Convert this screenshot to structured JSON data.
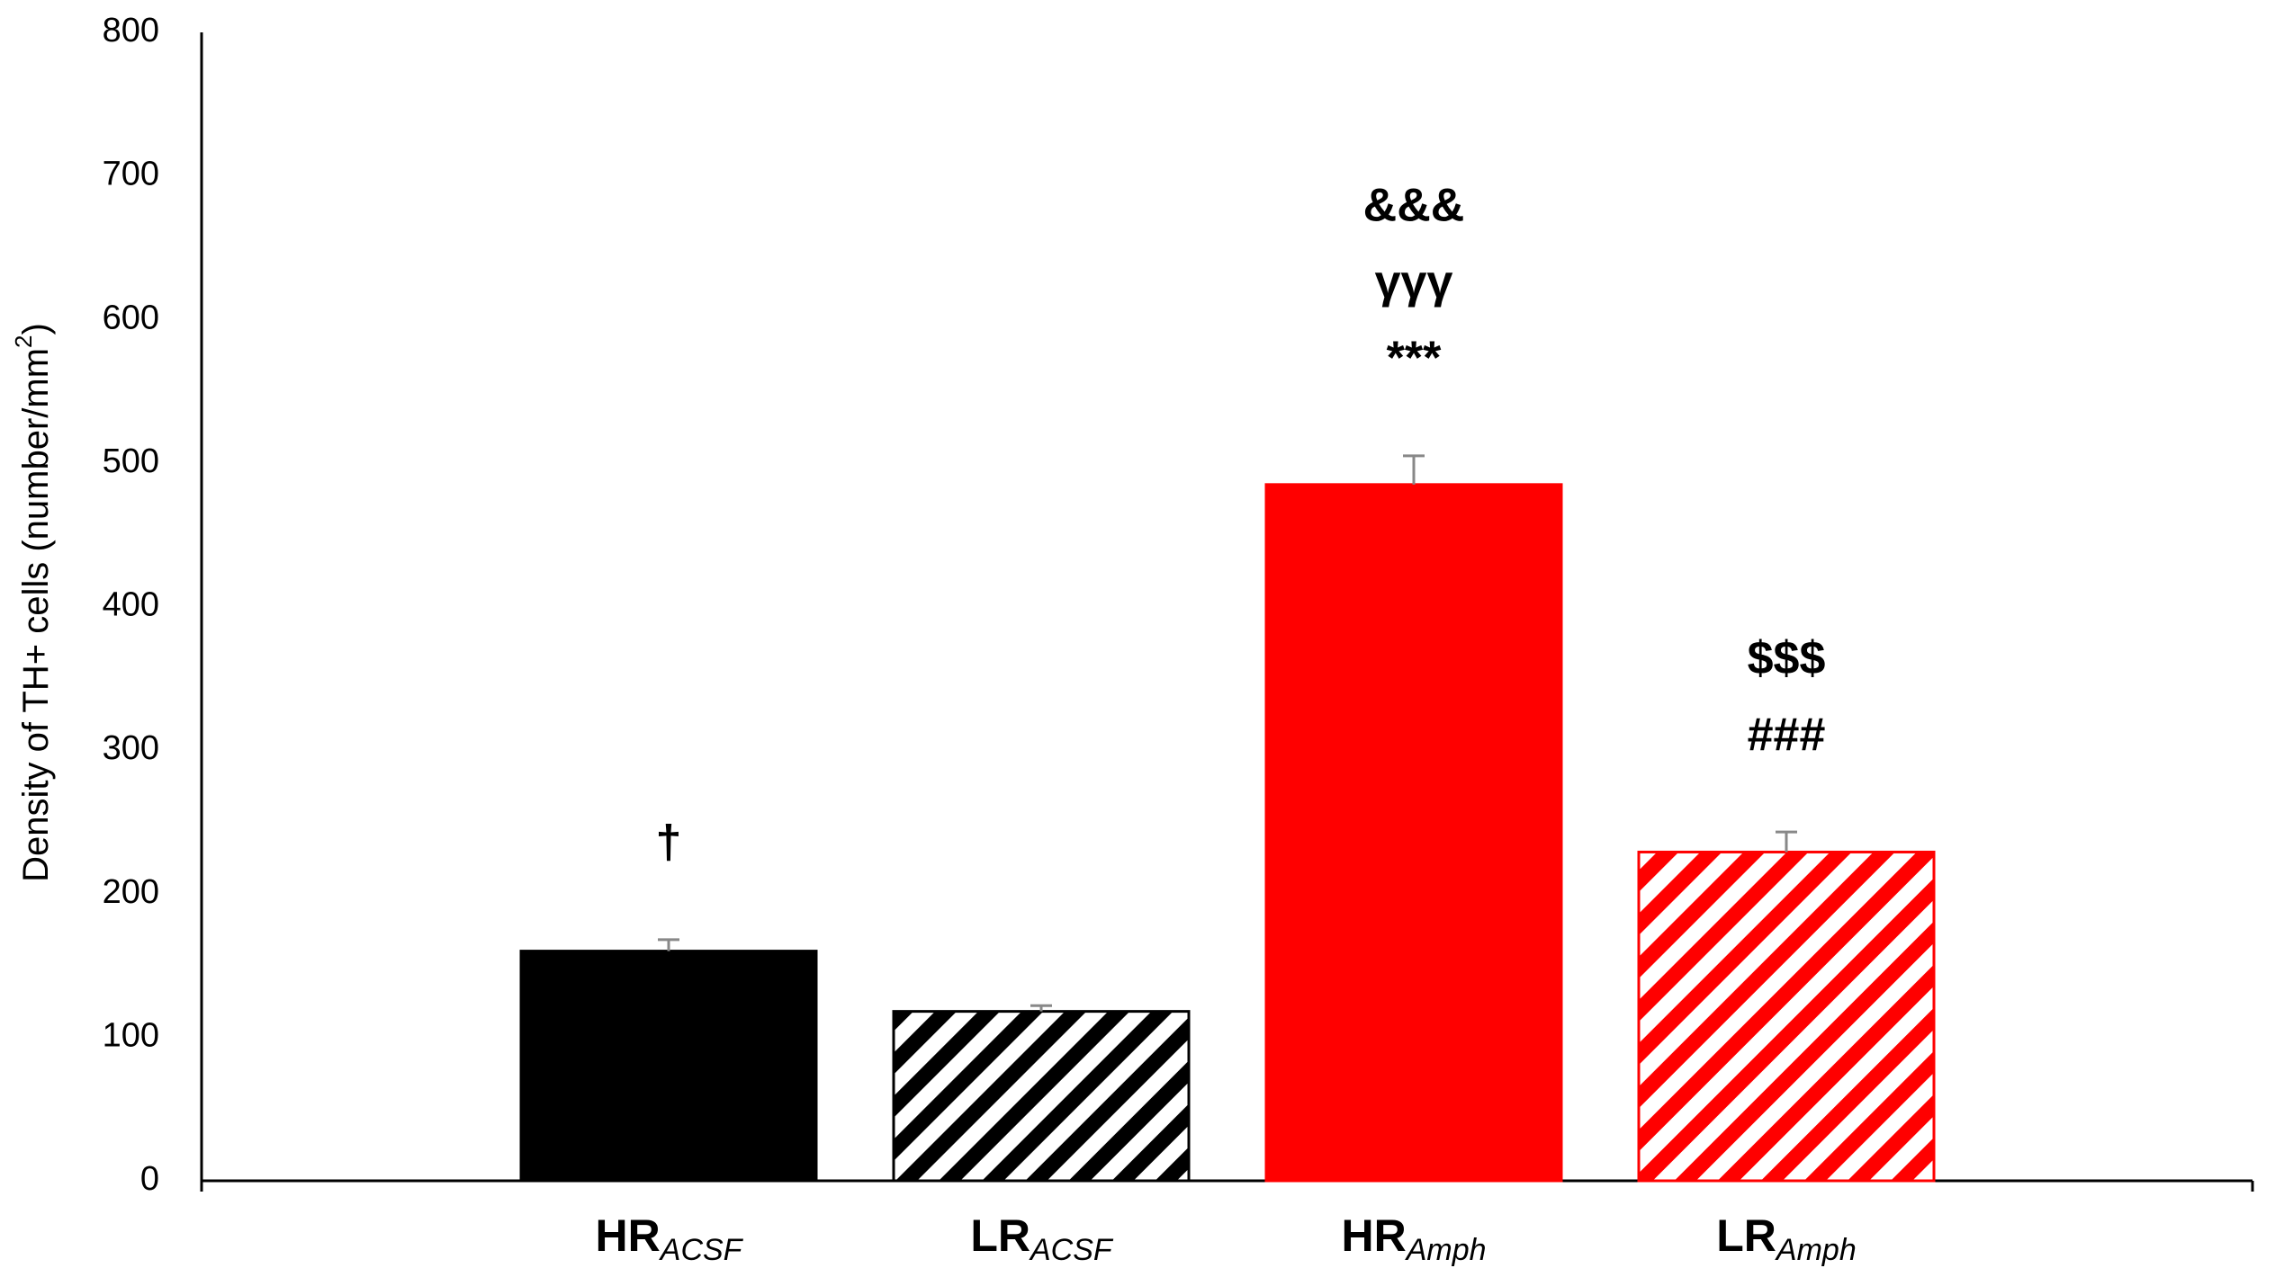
{
  "chart_data": {
    "type": "bar",
    "ylabel": [
      "Density of TH+ cells (number/mm",
      "2",
      ")"
    ],
    "categories": [
      "HR",
      "LR",
      "HR",
      "LR"
    ],
    "category_subscripts": [
      "ACSF",
      "ACSF",
      "Amph",
      "Amph"
    ],
    "values": [
      160,
      118,
      485,
      229
    ],
    "errors": [
      8,
      4,
      20,
      14
    ],
    "colors": [
      "#000000",
      "#000000",
      "#ff0000",
      "#ff0000"
    ],
    "hatched": [
      false,
      true,
      false,
      true
    ],
    "annotations": [
      [
        "†"
      ],
      [],
      [
        "&&&",
        "γγγ",
        "***"
      ],
      [
        "$$$",
        "###"
      ]
    ],
    "ylim": [
      0,
      800
    ],
    "yticks": [
      0,
      100,
      200,
      300,
      400,
      500,
      600,
      700,
      800
    ],
    "grid": false
  }
}
